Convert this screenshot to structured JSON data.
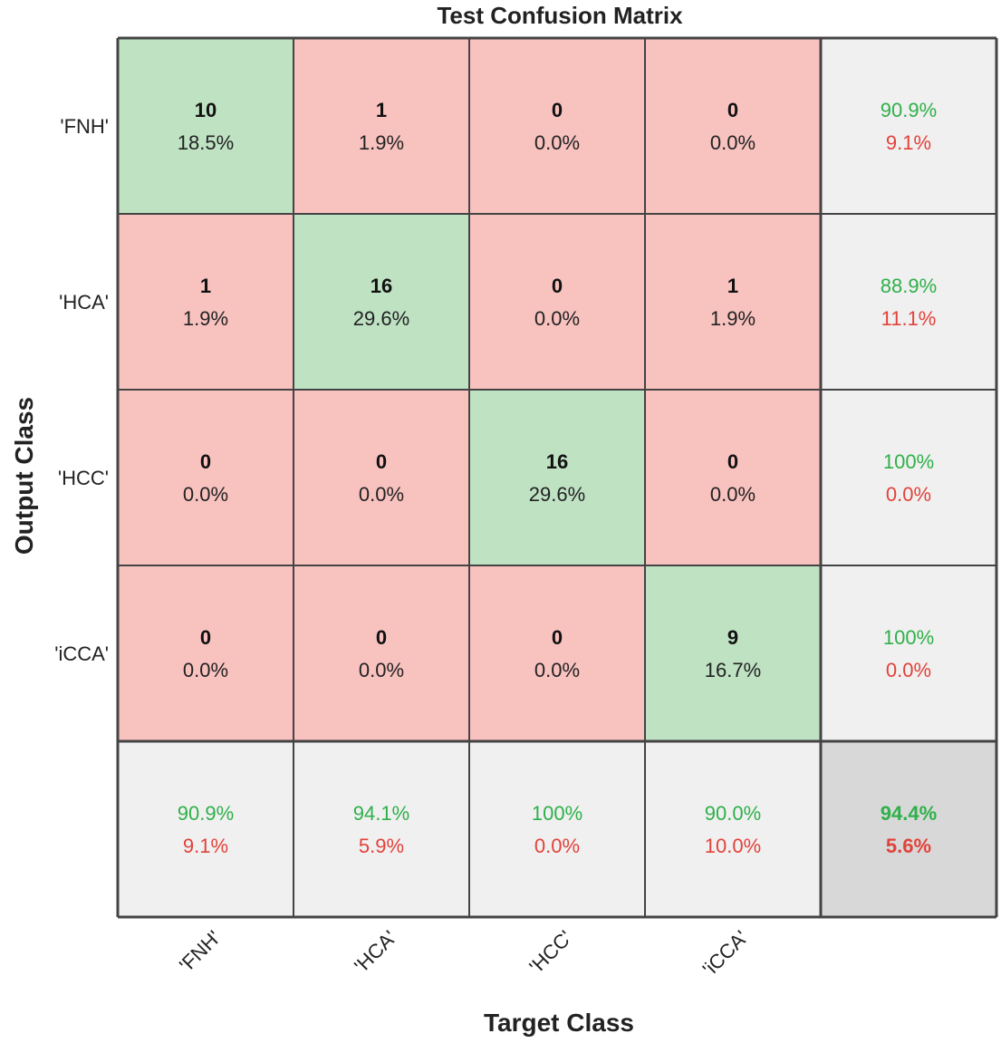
{
  "chart_data": {
    "type": "table",
    "title": "Test Confusion Matrix",
    "xlabel": "Target Class",
    "ylabel": "Output Class",
    "classes": [
      "'FNH'",
      "'HCA'",
      "'HCC'",
      "'iCCA'"
    ],
    "counts": [
      [
        10,
        1,
        0,
        0
      ],
      [
        1,
        16,
        0,
        1
      ],
      [
        0,
        0,
        16,
        0
      ],
      [
        0,
        0,
        0,
        9
      ]
    ],
    "percents": [
      [
        "18.5%",
        "1.9%",
        "0.0%",
        "0.0%"
      ],
      [
        "1.9%",
        "29.6%",
        "0.0%",
        "1.9%"
      ],
      [
        "0.0%",
        "0.0%",
        "29.6%",
        "0.0%"
      ],
      [
        "0.0%",
        "0.0%",
        "0.0%",
        "16.7%"
      ]
    ],
    "row_summary": [
      {
        "correct": "90.9%",
        "wrong": "9.1%"
      },
      {
        "correct": "88.9%",
        "wrong": "11.1%"
      },
      {
        "correct": "100%",
        "wrong": "0.0%"
      },
      {
        "correct": "100%",
        "wrong": "0.0%"
      }
    ],
    "col_summary": [
      {
        "correct": "90.9%",
        "wrong": "9.1%"
      },
      {
        "correct": "94.1%",
        "wrong": "5.9%"
      },
      {
        "correct": "100%",
        "wrong": "0.0%"
      },
      {
        "correct": "90.0%",
        "wrong": "10.0%"
      }
    ],
    "overall": {
      "correct": "94.4%",
      "wrong": "5.6%"
    }
  },
  "colors": {
    "correct_cell": "#bfe2c3",
    "wrong_cell": "#f8c2bf",
    "summary_cell": "#f0f0f0",
    "overall_cell": "#d8d8d8",
    "correct_text": "#2fb04a",
    "wrong_text": "#e2423a",
    "grid": "#444444"
  }
}
